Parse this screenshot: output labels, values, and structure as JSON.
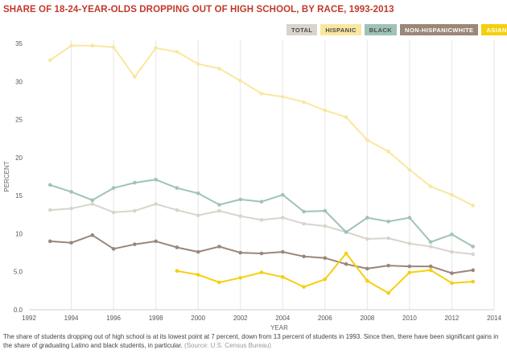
{
  "chart_data": {
    "type": "line",
    "title": "SHARE OF 18-24-YEAR-OLDS DROPPING OUT OF HIGH SCHOOL, BY RACE, 1993-2013",
    "xlabel": "YEAR",
    "ylabel": "PERCENT",
    "xlim": [
      1992,
      2014
    ],
    "ylim": [
      0,
      35
    ],
    "x_ticks": [
      "1992",
      "1994",
      "1996",
      "1998",
      "2000",
      "2002",
      "2004",
      "2006",
      "2008",
      "2010",
      "2012",
      "2014"
    ],
    "y_ticks": [
      "0.0",
      "5.0",
      "10",
      "15",
      "20",
      "25",
      "30",
      "35"
    ],
    "grid": "vertical",
    "legend_position": "top-right",
    "series": [
      {
        "name": "TOTAL",
        "color": "#d9d4cc",
        "x": [
          1993,
          1994,
          1995,
          1996,
          1997,
          1998,
          1999,
          2000,
          2001,
          2002,
          2003,
          2004,
          2005,
          2006,
          2007,
          2008,
          2009,
          2010,
          2011,
          2012,
          2013
        ],
        "values": [
          13.1,
          13.3,
          13.9,
          12.8,
          13.0,
          13.9,
          13.1,
          12.4,
          13.0,
          12.3,
          11.8,
          12.1,
          11.3,
          11.0,
          10.2,
          9.3,
          9.4,
          8.7,
          8.3,
          7.6,
          7.3
        ]
      },
      {
        "name": "HISPANIC",
        "color": "#f9e79f",
        "x": [
          1993,
          1994,
          1995,
          1996,
          1997,
          1998,
          1999,
          2000,
          2001,
          2002,
          2003,
          2004,
          2005,
          2006,
          2007,
          2008,
          2009,
          2010,
          2011,
          2012,
          2013
        ],
        "values": [
          32.8,
          34.7,
          34.7,
          34.5,
          30.6,
          34.4,
          33.9,
          32.3,
          31.7,
          30.1,
          28.4,
          28.0,
          27.3,
          26.2,
          25.3,
          22.3,
          20.8,
          18.4,
          16.2,
          15.1,
          13.7
        ]
      },
      {
        "name": "BLACK",
        "color": "#9fc3b6",
        "x": [
          1993,
          1994,
          1995,
          1996,
          1997,
          1998,
          1999,
          2000,
          2001,
          2002,
          2003,
          2004,
          2005,
          2006,
          2007,
          2008,
          2009,
          2010,
          2011,
          2012,
          2013
        ],
        "values": [
          16.4,
          15.5,
          14.4,
          16.0,
          16.7,
          17.1,
          16.0,
          15.3,
          13.8,
          14.5,
          14.2,
          15.1,
          12.9,
          13.0,
          10.2,
          12.1,
          11.6,
          12.1,
          8.9,
          9.9,
          8.3
        ]
      },
      {
        "name": "NON-HISPANICWHITE",
        "color": "#9b8677",
        "x": [
          1993,
          1994,
          1995,
          1996,
          1997,
          1998,
          1999,
          2000,
          2001,
          2002,
          2003,
          2004,
          2005,
          2006,
          2007,
          2008,
          2009,
          2010,
          2011,
          2012,
          2013
        ],
        "values": [
          9.0,
          8.8,
          9.8,
          8.0,
          8.6,
          9.0,
          8.2,
          7.6,
          8.3,
          7.5,
          7.4,
          7.6,
          7.0,
          6.8,
          6.0,
          5.4,
          5.8,
          5.7,
          5.7,
          4.8,
          5.2
        ]
      },
      {
        "name": "ASIAN",
        "color": "#f5cf0f",
        "x": [
          1999,
          2000,
          2001,
          2002,
          2003,
          2004,
          2005,
          2006,
          2007,
          2008,
          2009,
          2010,
          2011,
          2012,
          2013
        ],
        "values": [
          5.1,
          4.6,
          3.6,
          4.2,
          4.9,
          4.3,
          3.0,
          4.0,
          7.4,
          3.8,
          2.2,
          4.9,
          5.2,
          3.5,
          3.7
        ]
      }
    ]
  },
  "caption": {
    "text": "The share of students dropping out of high school is at its lowest point at 7 percent, down from 13 percent of students in 1993. Since then, there have been significant gains in the share of graduating Latino and black students, in particular.",
    "source": "(Source: U.S. Census Bureau)"
  }
}
